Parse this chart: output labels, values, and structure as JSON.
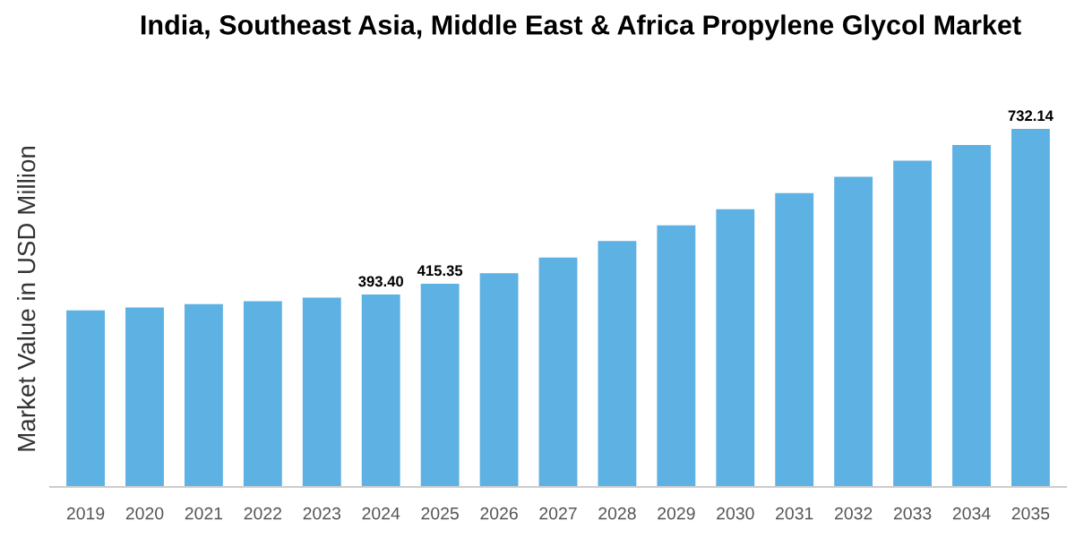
{
  "chart_data": {
    "type": "bar",
    "title": "India, Southeast Asia, Middle East & Africa Propylene Glycol Market",
    "ylabel": "Market Value in USD Million",
    "categories": [
      "2019",
      "2020",
      "2021",
      "2022",
      "2023",
      "2024",
      "2025",
      "2026",
      "2027",
      "2028",
      "2029",
      "2030",
      "2031",
      "2032",
      "2033",
      "2034",
      "2035"
    ],
    "values": [
      361,
      367,
      374,
      380,
      387,
      393.4,
      415.35,
      437,
      469,
      503,
      535,
      568,
      601,
      634,
      667,
      699,
      732.14
    ],
    "value_labels": [
      null,
      null,
      null,
      null,
      null,
      "393.40",
      "415.35",
      null,
      null,
      null,
      null,
      null,
      null,
      null,
      null,
      null,
      "732.14"
    ],
    "color": "#5eb1e3",
    "grid": false,
    "legend": false
  }
}
